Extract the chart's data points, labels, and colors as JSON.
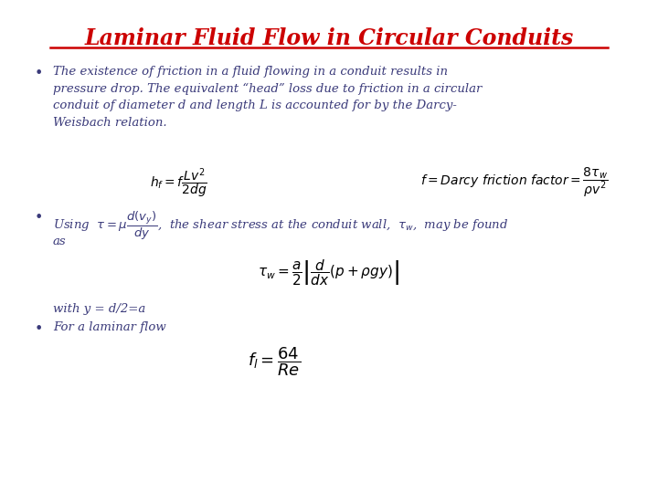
{
  "title": "Laminar Fluid Flow in Circular Conduits",
  "title_color": "#cc0000",
  "title_fontsize": 17,
  "background_color": "#ffffff",
  "text_color": "#3a3a7a",
  "eq_color": "#000000",
  "bullet1": "The existence of friction in a fluid flowing in a conduit results in\npressure drop. The equivalent “head” loss due to friction in a circular\nconduit of diameter d and length L is accounted for by the Darcy-\nWeisbach relation.",
  "eq1": "$h_f = f\\dfrac{Lv^2}{2dg}$",
  "eq2": "$f = Darcy\\ friction\\ factor = \\dfrac{8\\tau_w}{\\rho v^2}$",
  "bullet2_line1": "Using  $\\tau = \\mu\\dfrac{d(v_y)}{dy}$,  the shear stress at the conduit wall,  $\\tau_w$,  may be found",
  "bullet2_line2": "as",
  "eq3": "$\\tau_w = \\dfrac{a}{2}\\left|\\dfrac{d}{dx}\\left(p + \\rho gy\\right)\\right|$",
  "text_with_y": "with y = d/2=a",
  "bullet3": "For a laminar flow",
  "eq4": "$f_l = \\dfrac{64}{Re}$",
  "fontsize_body": 9.5,
  "fontsize_eq": 10
}
